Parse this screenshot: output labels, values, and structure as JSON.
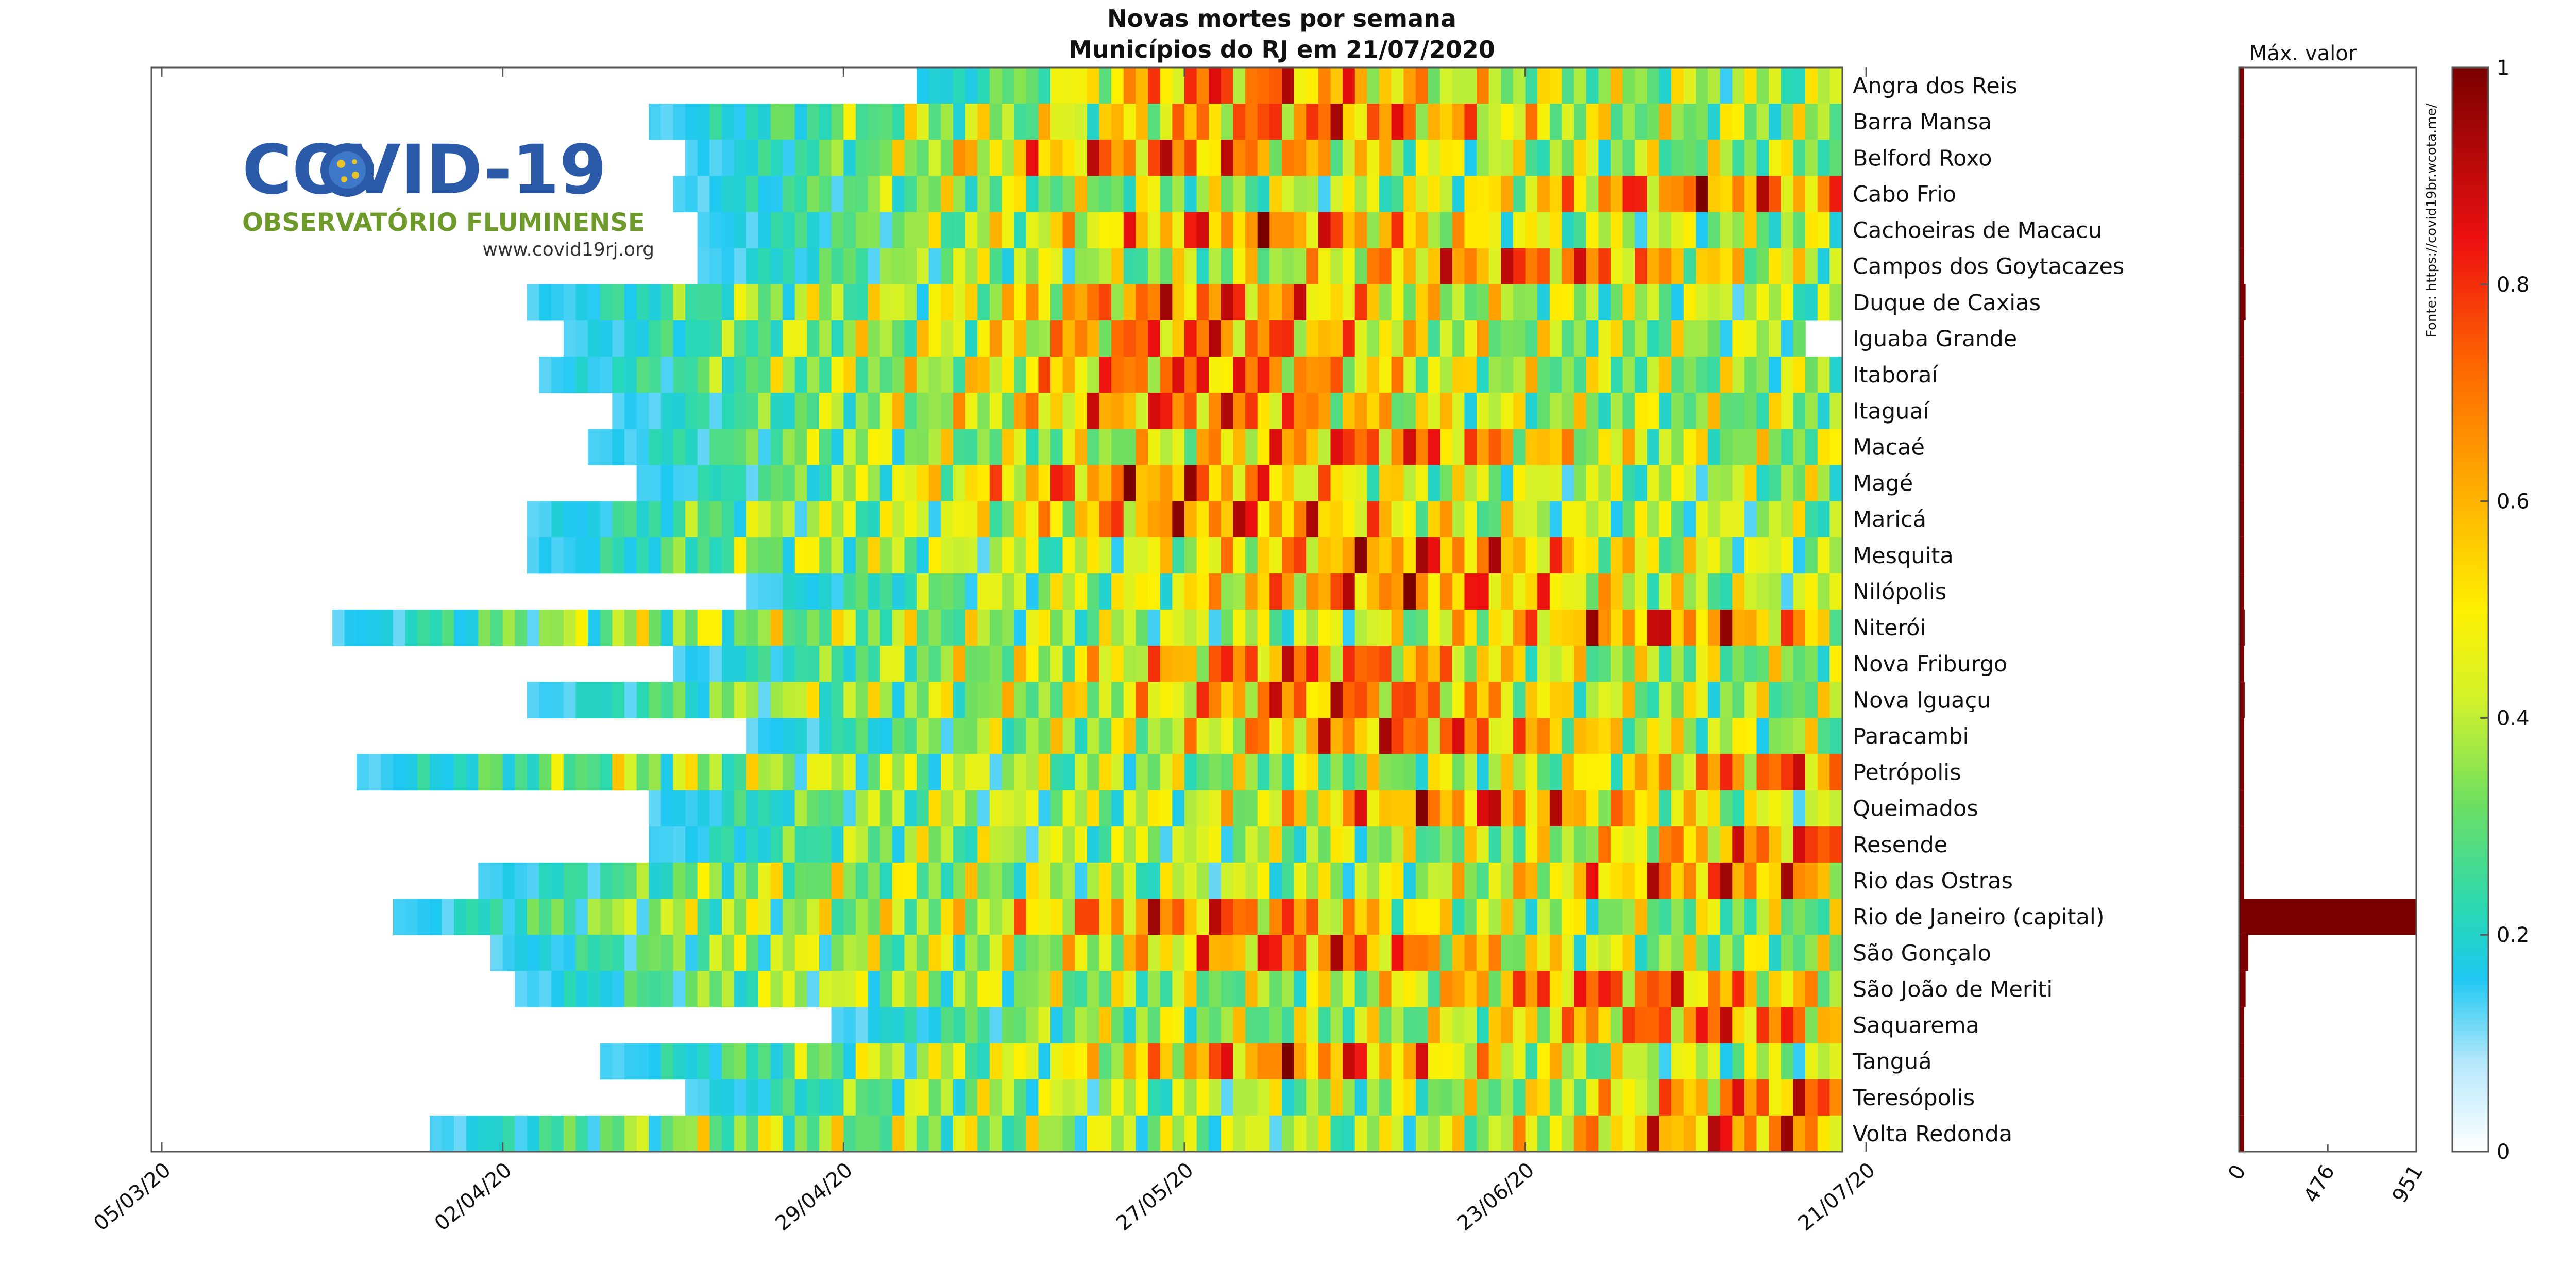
{
  "chart_data": {
    "type": "heatmap",
    "title": "Novas mortes por semana",
    "subtitle": "Municípios do RJ em 21/07/2020",
    "x_tick_labels": [
      "05/03/20",
      "02/04/20",
      "29/04/20",
      "27/05/20",
      "23/06/20",
      "21/07/20"
    ],
    "x_range_days": [
      0,
      138
    ],
    "colorbar": {
      "min": 0,
      "max": 1,
      "ticks": [
        "0",
        "0.2",
        "0.4",
        "0.6",
        "0.8",
        "1"
      ]
    },
    "municipalities": [
      "Angra dos Reis",
      "Barra Mansa",
      "Belford Roxo",
      "Cabo Frio",
      "Cachoeiras de Macacu",
      "Campos dos Goytacazes",
      "Duque de Caxias",
      "Iguaba Grande",
      "Itaboraí",
      "Itaguaí",
      "Macaé",
      "Magé",
      "Maricá",
      "Mesquita",
      "Nilópolis",
      "Niterói",
      "Nova Friburgo",
      "Nova Iguaçu",
      "Paracambi",
      "Petrópolis",
      "Queimados",
      "Resende",
      "Rio das Ostras",
      "Rio de Janeiro (capital)",
      "São Gonçalo",
      "São João de Meriti",
      "Saquarema",
      "Tanguá",
      "Teresópolis",
      "Volta Redonda"
    ],
    "start_day": [
      62,
      40,
      43,
      42,
      44,
      44,
      30,
      33,
      31,
      37,
      35,
      39,
      30,
      30,
      48,
      14,
      42,
      30,
      48,
      16,
      40,
      40,
      26,
      19,
      27,
      29,
      55,
      36,
      43,
      22
    ],
    "end_day": [
      138,
      138,
      138,
      138,
      138,
      138,
      138,
      135,
      138,
      138,
      138,
      138,
      138,
      138,
      138,
      138,
      138,
      138,
      138,
      138,
      138,
      138,
      138,
      138,
      138,
      138,
      138,
      138,
      138,
      138
    ],
    "peak_day": [
      88,
      95,
      82,
      126,
      90,
      112,
      85,
      85,
      85,
      85,
      100,
      81,
      87,
      103,
      101,
      123,
      93,
      96,
      102,
      135,
      107,
      136,
      128,
      85,
      95,
      119,
      127,
      93,
      135,
      130
    ],
    "right_panel": {
      "title": "Máx. valor",
      "x_tick_labels": [
        "0",
        "476",
        "951"
      ],
      "xlim": [
        0,
        951
      ],
      "max_values": [
        2,
        2,
        2,
        2,
        1,
        2,
        35,
        1,
        2,
        2,
        2,
        2,
        2,
        2,
        2,
        30,
        2,
        30,
        1,
        3,
        2,
        1,
        2,
        951,
        50,
        35,
        1,
        1,
        2,
        20
      ]
    },
    "source": "Fonte: https://covid19br.wcota.me/"
  },
  "logo": {
    "name": "COVID-19",
    "subtitle": "OBSERVATÓRIO FLUMINENSE",
    "url": "www.covid19rj.org"
  }
}
